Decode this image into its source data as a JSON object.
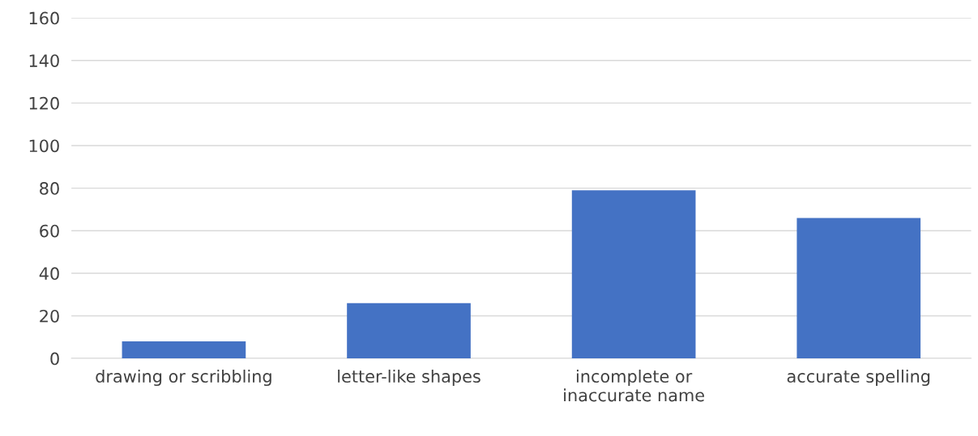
{
  "chart_data": {
    "type": "bar",
    "categories": [
      "drawing or scribbling",
      "letter-like shapes",
      "incomplete or\ninaccurate name",
      "accurate spelling"
    ],
    "values": [
      8,
      26,
      79,
      66
    ],
    "color": "#4472c4",
    "ylim": [
      0,
      160
    ],
    "yticks": [
      0,
      20,
      40,
      60,
      80,
      100,
      120,
      140,
      160
    ],
    "grid": "y",
    "legend": false
  }
}
